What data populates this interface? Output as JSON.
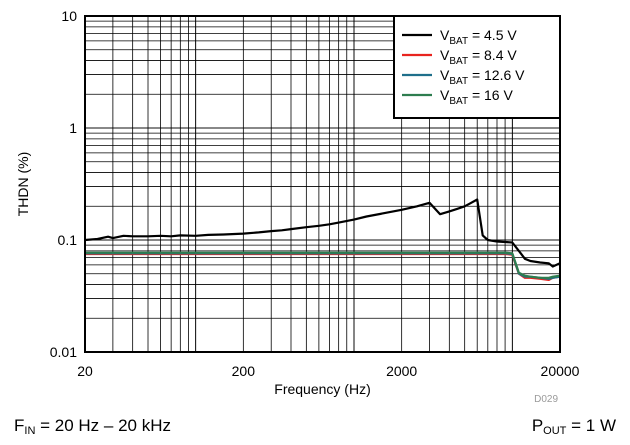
{
  "chart_data": {
    "type": "line",
    "title": "",
    "xlabel": "Frequency (Hz)",
    "ylabel": "THDN (%)",
    "x_scale": "log",
    "y_scale": "log",
    "xlim": [
      20,
      20000
    ],
    "ylim": [
      0.01,
      10
    ],
    "grid": true,
    "legend_position": "top-right",
    "x_ticks": [
      "20",
      "200",
      "2000",
      "20000"
    ],
    "y_ticks": [
      "0.01",
      "0.1",
      "1",
      "10"
    ],
    "code": "D029",
    "series": [
      {
        "name_main": "V",
        "name_sub": "BAT",
        "name_rest": " = 4.5 V",
        "color": "#000000",
        "x": [
          20,
          24,
          28,
          30,
          35,
          40,
          50,
          60,
          70,
          80,
          100,
          120,
          150,
          200,
          250,
          300,
          350,
          400,
          500,
          600,
          700,
          800,
          1000,
          1200,
          1500,
          2000,
          2500,
          3000,
          3500,
          4000,
          4500,
          5000,
          5500,
          6000,
          6500,
          7000,
          8000,
          9000,
          10000,
          11000,
          12000,
          13000,
          15000,
          17000,
          18000,
          20000
        ],
        "y": [
          0.1,
          0.102,
          0.107,
          0.104,
          0.109,
          0.108,
          0.108,
          0.109,
          0.108,
          0.11,
          0.109,
          0.111,
          0.112,
          0.114,
          0.117,
          0.12,
          0.122,
          0.125,
          0.13,
          0.134,
          0.138,
          0.143,
          0.152,
          0.162,
          0.172,
          0.186,
          0.2,
          0.215,
          0.17,
          0.18,
          0.19,
          0.2,
          0.215,
          0.23,
          0.11,
          0.1,
          0.097,
          0.096,
          0.095,
          0.08,
          0.068,
          0.065,
          0.063,
          0.062,
          0.058,
          0.062
        ]
      },
      {
        "name_main": "V",
        "name_sub": "BAT",
        "name_rest": " = 8.4 V",
        "color": "#e8241f",
        "x": [
          20,
          50,
          100,
          200,
          300,
          500,
          1000,
          2000,
          3000,
          5000,
          7000,
          9000,
          10000,
          10500,
          11000,
          12000,
          13000,
          15000,
          17000,
          18000,
          20000
        ],
        "y": [
          0.075,
          0.075,
          0.075,
          0.075,
          0.075,
          0.075,
          0.075,
          0.075,
          0.075,
          0.075,
          0.075,
          0.075,
          0.074,
          0.06,
          0.05,
          0.046,
          0.046,
          0.045,
          0.044,
          0.046,
          0.047
        ]
      },
      {
        "name_main": "V",
        "name_sub": "BAT",
        "name_rest": " = 12.6 V",
        "color": "#1f6f8b",
        "x": [
          20,
          50,
          100,
          200,
          300,
          500,
          1000,
          2000,
          3000,
          5000,
          7000,
          9000,
          10000,
          10500,
          11000,
          12000,
          13000,
          15000,
          17000,
          18000,
          20000
        ],
        "y": [
          0.076,
          0.076,
          0.076,
          0.076,
          0.076,
          0.076,
          0.076,
          0.076,
          0.076,
          0.076,
          0.076,
          0.076,
          0.075,
          0.061,
          0.05,
          0.047,
          0.047,
          0.046,
          0.045,
          0.046,
          0.047
        ]
      },
      {
        "name_main": "V",
        "name_sub": "BAT",
        "name_rest": " = 16 V",
        "color": "#2e7d4f",
        "x": [
          20,
          50,
          100,
          200,
          300,
          500,
          1000,
          2000,
          3000,
          5000,
          7000,
          9000,
          10000,
          10500,
          11000,
          12000,
          13000,
          15000,
          17000,
          18000,
          20000
        ],
        "y": [
          0.077,
          0.077,
          0.077,
          0.077,
          0.077,
          0.077,
          0.077,
          0.077,
          0.077,
          0.077,
          0.077,
          0.077,
          0.076,
          0.062,
          0.051,
          0.048,
          0.047,
          0.046,
          0.046,
          0.047,
          0.048
        ]
      }
    ]
  },
  "captions": {
    "left_main": "F",
    "left_sub": "IN",
    "left_rest": " = 20 Hz – 20 kHz",
    "right_main": "P",
    "right_sub": "OUT",
    "right_rest": " = 1 W"
  }
}
